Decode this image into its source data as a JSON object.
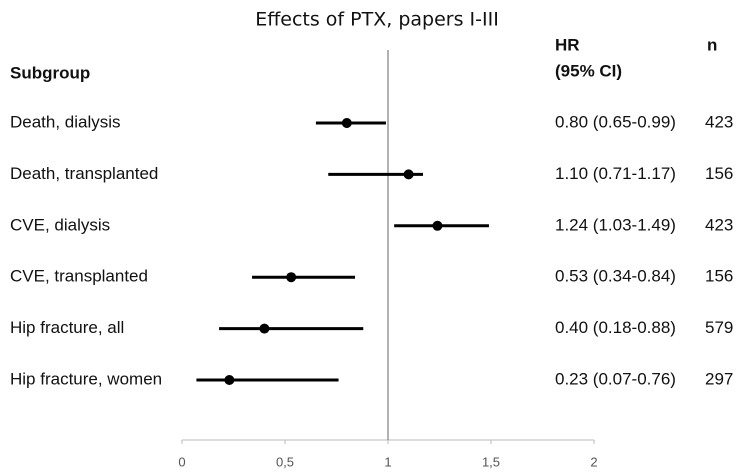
{
  "chart_data": {
    "type": "forest",
    "title": "Effects of PTX, papers I-III",
    "subgroup_header": "Subgroup",
    "hr_header": [
      "HR",
      "(95% CI)"
    ],
    "n_header": "n",
    "categories": [
      "Death, dialysis",
      "Death, transplanted",
      "CVE, dialysis",
      "CVE, transplanted",
      "Hip fracture, all",
      "Hip fracture, women"
    ],
    "values": [
      0.8,
      1.1,
      1.24,
      0.53,
      0.4,
      0.23
    ],
    "lower": [
      0.65,
      0.71,
      1.03,
      0.34,
      0.18,
      0.07
    ],
    "upper": [
      0.99,
      1.17,
      1.49,
      0.84,
      0.88,
      0.76
    ],
    "value_labels": [
      "0.80 (0.65-0.99)",
      "1.10 (0.71-1.17)",
      "1.24 (1.03-1.49)",
      "0.53 (0.34-0.84)",
      "0.40 (0.18-0.88)",
      "0.23 (0.07-0.76)"
    ],
    "n": [
      423,
      156,
      423,
      156,
      579,
      297
    ],
    "reference_line": 1,
    "color": "#000000",
    "xlim": [
      0,
      2
    ],
    "xticks": [
      0,
      {
        "value": 0.5,
        "label": "0,5"
      },
      1,
      {
        "value": 1.5,
        "label": "1,5"
      },
      2
    ]
  }
}
